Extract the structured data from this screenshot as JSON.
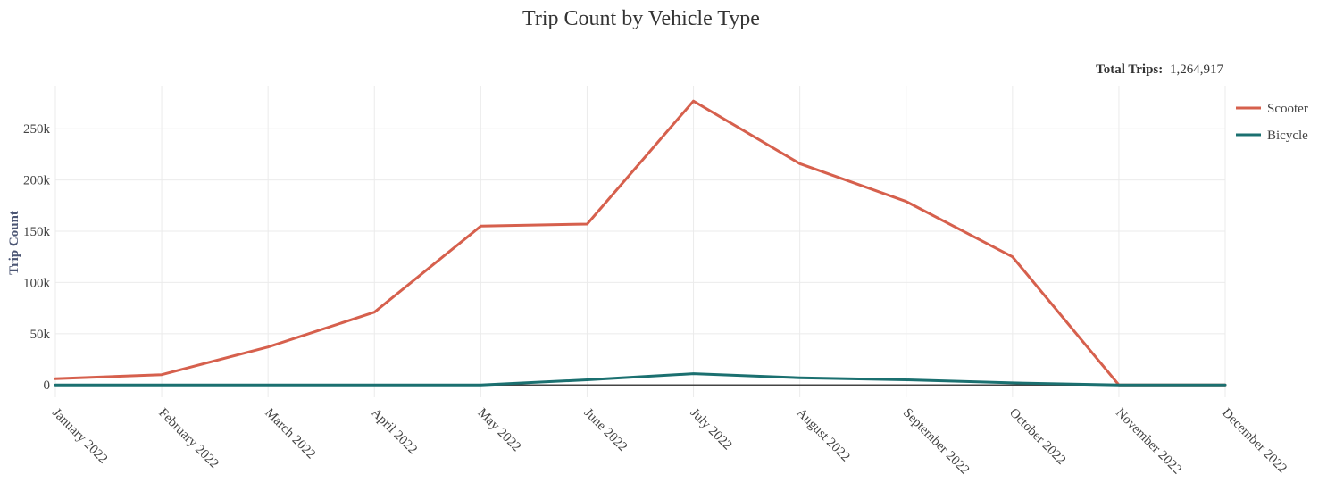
{
  "chart_data": {
    "type": "line",
    "title": "Trip Count by Vehicle Type",
    "annotation": {
      "label": "Total Trips:",
      "value": "1,264,917"
    },
    "xlabel": "",
    "ylabel": "Trip Count",
    "categories": [
      "January 2022",
      "February 2022",
      "March 2022",
      "April 2022",
      "May 2022",
      "June 2022",
      "July 2022",
      "August 2022",
      "September 2022",
      "October 2022",
      "November 2022",
      "December 2022"
    ],
    "y_ticks": [
      0,
      50000,
      100000,
      150000,
      200000,
      250000
    ],
    "y_tick_labels": [
      "0",
      "50k",
      "100k",
      "150k",
      "200k",
      "250k"
    ],
    "ylim": [
      -12000,
      292000
    ],
    "grid": true,
    "legend_position": "top-right",
    "series": [
      {
        "name": "Scooter",
        "color": "#d6604d",
        "values": [
          6000,
          10000,
          37000,
          71000,
          155000,
          157000,
          277000,
          216000,
          179000,
          125000,
          0,
          0
        ]
      },
      {
        "name": "Bicycle",
        "color": "#1b7070",
        "values": [
          0,
          0,
          0,
          0,
          0,
          5000,
          11000,
          7000,
          5000,
          2000,
          0,
          0
        ]
      }
    ]
  }
}
